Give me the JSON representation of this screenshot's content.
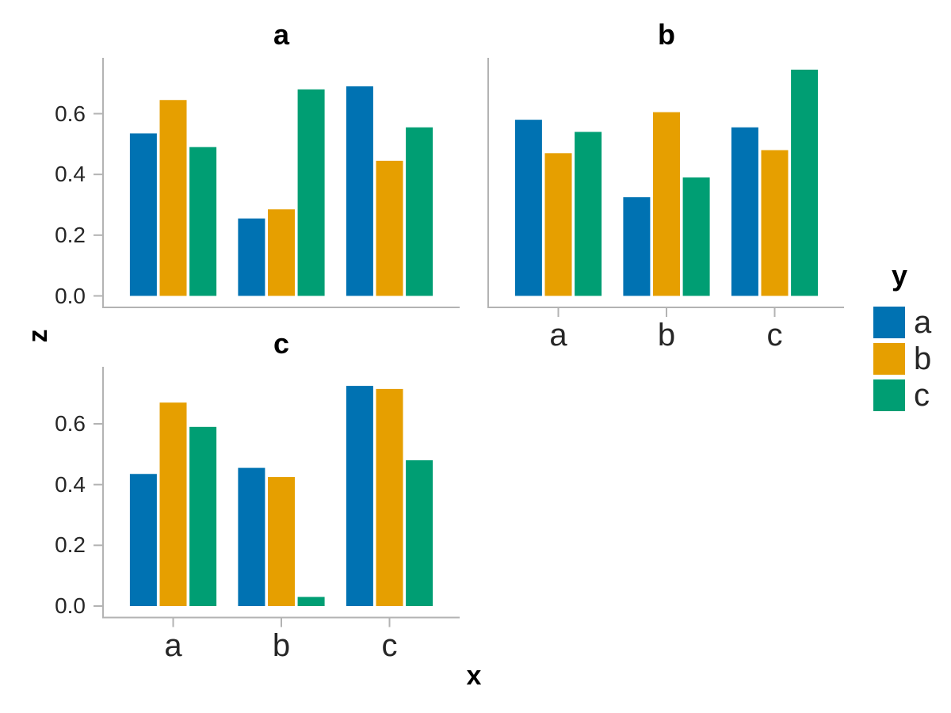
{
  "chart_data": {
    "type": "bar",
    "title": "",
    "xlabel": "x",
    "ylabel": "z",
    "legend_title": "y",
    "legend_position": "right",
    "grid": false,
    "categories": [
      "a",
      "b",
      "c"
    ],
    "series_names": [
      "a",
      "b",
      "c"
    ],
    "series_colors": [
      "#0072B2",
      "#E69F00",
      "#009E73"
    ],
    "axis_color": "#b3b3b3",
    "text_color": "#262626",
    "y_ticks": [
      0.0,
      0.2,
      0.4,
      0.6
    ],
    "ylim": [
      -0.04,
      0.79
    ],
    "facets": [
      {
        "title": "a",
        "show_y_tick_labels": true,
        "show_x_tick_labels": false,
        "series": [
          {
            "name": "a",
            "values": [
              0.535,
              0.255,
              0.69
            ]
          },
          {
            "name": "b",
            "values": [
              0.645,
              0.285,
              0.445
            ]
          },
          {
            "name": "c",
            "values": [
              0.49,
              0.68,
              0.555
            ]
          }
        ]
      },
      {
        "title": "b",
        "show_y_tick_labels": false,
        "show_x_tick_labels": true,
        "series": [
          {
            "name": "a",
            "values": [
              0.58,
              0.325,
              0.555
            ]
          },
          {
            "name": "b",
            "values": [
              0.47,
              0.605,
              0.48
            ]
          },
          {
            "name": "c",
            "values": [
              0.54,
              0.39,
              0.745
            ]
          }
        ]
      },
      {
        "title": "c",
        "show_y_tick_labels": true,
        "show_x_tick_labels": true,
        "series": [
          {
            "name": "a",
            "values": [
              0.435,
              0.455,
              0.725
            ]
          },
          {
            "name": "b",
            "values": [
              0.67,
              0.425,
              0.715
            ]
          },
          {
            "name": "c",
            "values": [
              0.59,
              0.03,
              0.48
            ]
          }
        ]
      }
    ]
  }
}
